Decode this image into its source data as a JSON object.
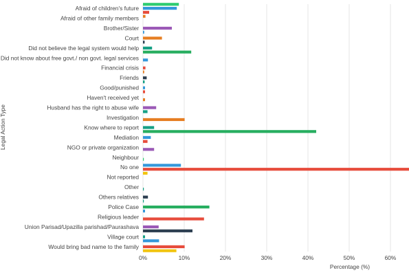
{
  "chart_data": {
    "type": "bar",
    "orientation": "horizontal",
    "xlabel": "Percentage (%)",
    "ylabel": "Legal Action Type",
    "xlim": [
      0,
      64.5
    ],
    "x_ticks": [
      0,
      10,
      20,
      30,
      40,
      50,
      60
    ],
    "x_tick_labels": [
      "0%",
      "10%",
      "20%",
      "30%",
      "40%",
      "50%",
      "60%"
    ],
    "grid": "vertical",
    "palette": {
      "green": "#2ecc71",
      "blue": "#3498db",
      "red": "#e74c3c",
      "orange": "#e67e22",
      "yellow": "#f1c40f",
      "purple": "#9b59b6",
      "teal": "#16a085",
      "jade": "#27ae60",
      "navy": "#2c3e50"
    },
    "categories": [
      {
        "label": "Afraid of children's future",
        "bars": [
          {
            "color": "green",
            "value": 8.7
          },
          {
            "color": "blue",
            "value": 8.2
          },
          {
            "color": "red",
            "value": 1.5
          },
          {
            "color": "orange",
            "value": 0.6
          }
        ]
      },
      {
        "label": "Afraid of other family members",
        "bars": []
      },
      {
        "label": "Brother/Sister",
        "bars": [
          {
            "color": "purple",
            "value": 7.0
          },
          {
            "color": "blue",
            "value": 0.3
          }
        ]
      },
      {
        "label": "Court",
        "bars": [
          {
            "color": "orange",
            "value": 4.6
          },
          {
            "color": "navy",
            "value": 0.4
          }
        ]
      },
      {
        "label": "Did not believe the legal system would help",
        "bars": [
          {
            "color": "teal",
            "value": 2.2
          },
          {
            "color": "jade",
            "value": 11.7
          }
        ]
      },
      {
        "label": "Did not know about free govt./ non govt. legal services",
        "bars": [
          {
            "color": "blue",
            "value": 1.2
          }
        ]
      },
      {
        "label": "Financial crisis",
        "bars": [
          {
            "color": "red",
            "value": 0.6
          },
          {
            "color": "orange",
            "value": 0.3
          }
        ]
      },
      {
        "label": "Friends",
        "bars": [
          {
            "color": "navy",
            "value": 0.9
          },
          {
            "color": "teal",
            "value": 0.4
          }
        ]
      },
      {
        "label": "Good/punished",
        "bars": [
          {
            "color": "blue",
            "value": 0.5
          },
          {
            "color": "red",
            "value": 0.5
          }
        ]
      },
      {
        "label": "Haven't received yet",
        "bars": [
          {
            "color": "orange",
            "value": 0.5
          }
        ]
      },
      {
        "label": "Husband has the right to abuse wife",
        "bars": [
          {
            "color": "purple",
            "value": 3.2
          },
          {
            "color": "teal",
            "value": 1.1
          }
        ]
      },
      {
        "label": "Investigation",
        "bars": [
          {
            "color": "orange",
            "value": 10.1
          }
        ]
      },
      {
        "label": "Know where to report",
        "bars": [
          {
            "color": "teal",
            "value": 2.7
          },
          {
            "color": "jade",
            "value": 42.0
          }
        ]
      },
      {
        "label": "Mediation",
        "bars": [
          {
            "color": "blue",
            "value": 1.9
          },
          {
            "color": "red",
            "value": 1.1
          }
        ]
      },
      {
        "label": "NGO or private organization",
        "bars": [
          {
            "color": "purple",
            "value": 2.7
          }
        ]
      },
      {
        "label": "Neighbour",
        "bars": [
          {
            "color": "green",
            "value": 0.2
          }
        ]
      },
      {
        "label": "No one",
        "bars": [
          {
            "color": "blue",
            "value": 9.2
          },
          {
            "color": "red",
            "value": 64.5
          },
          {
            "color": "yellow",
            "value": 1.1
          }
        ]
      },
      {
        "label": "Not reported",
        "bars": []
      },
      {
        "label": "Other",
        "bars": [
          {
            "color": "teal",
            "value": 0.2
          }
        ]
      },
      {
        "label": "Others relatives",
        "bars": [
          {
            "color": "navy",
            "value": 1.2
          },
          {
            "color": "teal",
            "value": 0.2
          }
        ]
      },
      {
        "label": "Police Case",
        "bars": [
          {
            "color": "jade",
            "value": 16.1
          },
          {
            "color": "blue",
            "value": 0.5
          }
        ]
      },
      {
        "label": "Religious leader",
        "bars": [
          {
            "color": "red",
            "value": 14.8
          }
        ]
      },
      {
        "label": "Union Parisad/Upazilla parishad/Paurashava",
        "bars": [
          {
            "color": "purple",
            "value": 3.8
          },
          {
            "color": "navy",
            "value": 12.0
          }
        ]
      },
      {
        "label": "Village court",
        "bars": [
          {
            "color": "teal",
            "value": 0.5
          },
          {
            "color": "blue",
            "value": 3.9
          }
        ]
      },
      {
        "label": "Would bring bad name to the family",
        "bars": [
          {
            "color": "red",
            "value": 10.1
          },
          {
            "color": "yellow",
            "value": 8.1
          }
        ]
      }
    ]
  }
}
